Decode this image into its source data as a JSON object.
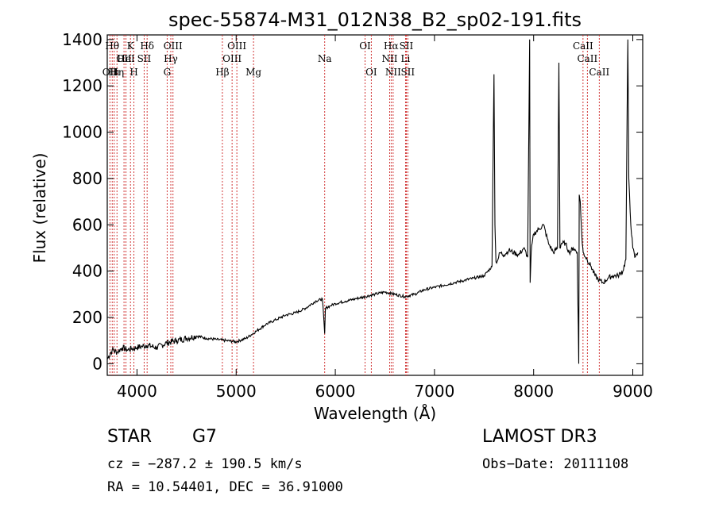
{
  "chart_data": {
    "type": "line",
    "title": "spec-55874-M31_012N38_B2_sp02-191.fits",
    "xlabel": "Wavelength (Å)",
    "ylabel": "Flux (relative)",
    "xlim": [
      3700,
      9100
    ],
    "ylim": [
      -50,
      1420
    ],
    "x_ticks": [
      4000,
      5000,
      6000,
      7000,
      8000,
      9000
    ],
    "y_ticks": [
      0,
      200,
      400,
      600,
      800,
      1000,
      1200,
      1400
    ],
    "series": [
      {
        "name": "spectrum",
        "x": [
          3700,
          3750,
          3800,
          3850,
          3900,
          3950,
          4000,
          4050,
          4100,
          4200,
          4300,
          4400,
          4500,
          4600,
          4700,
          4800,
          4900,
          5000,
          5100,
          5200,
          5300,
          5400,
          5500,
          5600,
          5700,
          5800,
          5870,
          5893,
          5900,
          5950,
          6000,
          6100,
          6200,
          6300,
          6400,
          6500,
          6600,
          6700,
          6800,
          6900,
          7000,
          7100,
          7200,
          7300,
          7400,
          7500,
          7580,
          7600,
          7610,
          7620,
          7640,
          7660,
          7700,
          7750,
          7800,
          7850,
          7900,
          7940,
          7960,
          7965,
          7975,
          7985,
          8000,
          8050,
          8100,
          8150,
          8200,
          8240,
          8255,
          8265,
          8280,
          8320,
          8360,
          8400,
          8440,
          8455,
          8460,
          8470,
          8490,
          8500,
          8540,
          8580,
          8620,
          8660,
          8700,
          8750,
          8800,
          8850,
          8900,
          8930,
          8950,
          8960,
          8980,
          9000,
          9020,
          9050
        ],
        "y": [
          20,
          60,
          50,
          70,
          60,
          65,
          70,
          75,
          80,
          70,
          90,
          100,
          110,
          120,
          110,
          105,
          100,
          95,
          110,
          140,
          170,
          190,
          210,
          220,
          240,
          270,
          280,
          130,
          240,
          250,
          260,
          270,
          280,
          290,
          300,
          310,
          300,
          290,
          300,
          320,
          330,
          340,
          350,
          360,
          370,
          380,
          420,
          1250,
          600,
          440,
          450,
          480,
          470,
          490,
          480,
          470,
          500,
          460,
          1400,
          350,
          480,
          520,
          560,
          580,
          600,
          520,
          480,
          500,
          1300,
          500,
          520,
          520,
          480,
          500,
          480,
          0,
          730,
          700,
          520,
          480,
          450,
          420,
          380,
          360,
          350,
          370,
          380,
          380,
          400,
          450,
          1400,
          800,
          600,
          500,
          460,
          480
        ]
      }
    ],
    "lines": [
      {
        "x": 3727,
        "label": "OII",
        "row": 3
      },
      {
        "x": 3750,
        "label": "Hθ",
        "row": 1
      },
      {
        "x": 3770,
        "label": "Hι",
        "row": 3
      },
      {
        "x": 3798,
        "label": "Hη",
        "row": 3
      },
      {
        "x": 3869,
        "label": "OII",
        "row": 2
      },
      {
        "x": 3889,
        "label": "HeI",
        "row": 2
      },
      {
        "x": 3934,
        "label": "K",
        "row": 1
      },
      {
        "x": 3969,
        "label": "H",
        "row": 3
      },
      {
        "x": 4072,
        "label": "SII",
        "row": 2
      },
      {
        "x": 4102,
        "label": "Hδ",
        "row": 1
      },
      {
        "x": 4304,
        "label": "G",
        "row": 3
      },
      {
        "x": 4341,
        "label": "Hγ",
        "row": 2
      },
      {
        "x": 4363,
        "label": "OIII",
        "row": 1
      },
      {
        "x": 4861,
        "label": "Hβ",
        "row": 3
      },
      {
        "x": 4959,
        "label": "OIII",
        "row": 2
      },
      {
        "x": 5007,
        "label": "OIII",
        "row": 1
      },
      {
        "x": 5175,
        "label": "Mg",
        "row": 3
      },
      {
        "x": 5893,
        "label": "Na",
        "row": 2
      },
      {
        "x": 6300,
        "label": "OI",
        "row": 1
      },
      {
        "x": 6363,
        "label": "OI",
        "row": 3
      },
      {
        "x": 6548,
        "label": "NII",
        "row": 2
      },
      {
        "x": 6563,
        "label": "Hα",
        "row": 1
      },
      {
        "x": 6583,
        "label": "NII",
        "row": 3
      },
      {
        "x": 6708,
        "label": "Li",
        "row": 2
      },
      {
        "x": 6716,
        "label": "SII",
        "row": 1
      },
      {
        "x": 6731,
        "label": "SII",
        "row": 3
      },
      {
        "x": 8498,
        "label": "CaII",
        "row": 1
      },
      {
        "x": 8542,
        "label": "CaII",
        "row": 2
      },
      {
        "x": 8662,
        "label": "CaII",
        "row": 3
      }
    ]
  },
  "info": {
    "class_label": "STAR",
    "subclass": "G7",
    "survey": "LAMOST DR3",
    "cz": "cz = −287.2 ± 190.5 km/s",
    "obs_date": "Obs−Date: 20111108",
    "radec": "RA =  10.54401, DEC =  36.91000"
  }
}
